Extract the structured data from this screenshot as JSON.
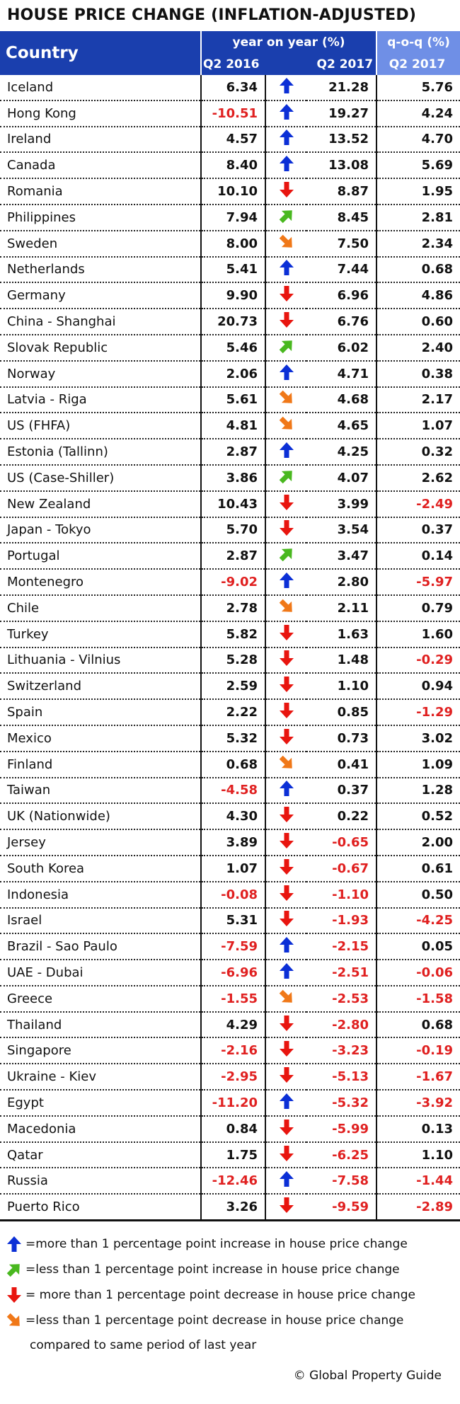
{
  "title": "HOUSE PRICE CHANGE (INFLATION-ADJUSTED)",
  "header": {
    "country": "Country",
    "yoy_label": "year on year (%)",
    "qoq_label": "q-o-q (%)",
    "col_2016": "Q2 2016",
    "col_2017": "Q2 2017",
    "col_qoq": "Q2 2017"
  },
  "colors": {
    "header_bg": "#1a3fae",
    "qoq_header_bg": "#6f8fe6",
    "negative": "#e02020",
    "up_strong": "#0b2fd6",
    "up_weak": "#49b81f",
    "down_strong": "#e8150f",
    "down_weak": "#f07818"
  },
  "chart_data": {
    "type": "table",
    "title": "HOUSE PRICE CHANGE (INFLATION-ADJUSTED)",
    "columns": [
      "Country",
      "Q2 2016",
      "",
      "Q2 2017",
      "Q2 2017"
    ],
    "rows": [
      {
        "country": "Iceland",
        "y2016": "6.34",
        "arrow": "up",
        "y2017": "21.28",
        "qoq": "5.76"
      },
      {
        "country": "Hong Kong",
        "y2016": "-10.51",
        "arrow": "up",
        "y2017": "19.27",
        "qoq": "4.24"
      },
      {
        "country": "Ireland",
        "y2016": "4.57",
        "arrow": "up",
        "y2017": "13.52",
        "qoq": "4.70"
      },
      {
        "country": "Canada",
        "y2016": "8.40",
        "arrow": "up",
        "y2017": "13.08",
        "qoq": "5.69"
      },
      {
        "country": "Romania",
        "y2016": "10.10",
        "arrow": "down",
        "y2017": "8.87",
        "qoq": "1.95"
      },
      {
        "country": "Philippines",
        "y2016": "7.94",
        "arrow": "up-small",
        "y2017": "8.45",
        "qoq": "2.81"
      },
      {
        "country": "Sweden",
        "y2016": "8.00",
        "arrow": "down-small",
        "y2017": "7.50",
        "qoq": "2.34"
      },
      {
        "country": "Netherlands",
        "y2016": "5.41",
        "arrow": "up",
        "y2017": "7.44",
        "qoq": "0.68"
      },
      {
        "country": "Germany",
        "y2016": "9.90",
        "arrow": "down",
        "y2017": "6.96",
        "qoq": "4.86"
      },
      {
        "country": "China - Shanghai",
        "y2016": "20.73",
        "arrow": "down",
        "y2017": "6.76",
        "qoq": "0.60"
      },
      {
        "country": "Slovak Republic",
        "y2016": "5.46",
        "arrow": "up-small",
        "y2017": "6.02",
        "qoq": "2.40"
      },
      {
        "country": "Norway",
        "y2016": "2.06",
        "arrow": "up",
        "y2017": "4.71",
        "qoq": "0.38"
      },
      {
        "country": "Latvia - Riga",
        "y2016": "5.61",
        "arrow": "down-small",
        "y2017": "4.68",
        "qoq": "2.17"
      },
      {
        "country": "US (FHFA)",
        "y2016": "4.81",
        "arrow": "down-small",
        "y2017": "4.65",
        "qoq": "1.07"
      },
      {
        "country": "Estonia (Tallinn)",
        "y2016": "2.87",
        "arrow": "up",
        "y2017": "4.25",
        "qoq": "0.32"
      },
      {
        "country": "US (Case-Shiller)",
        "y2016": "3.86",
        "arrow": "up-small",
        "y2017": "4.07",
        "qoq": "2.62"
      },
      {
        "country": "New Zealand",
        "y2016": "10.43",
        "arrow": "down",
        "y2017": "3.99",
        "qoq": "-2.49"
      },
      {
        "country": "Japan - Tokyo",
        "y2016": "5.70",
        "arrow": "down",
        "y2017": "3.54",
        "qoq": "0.37"
      },
      {
        "country": "Portugal",
        "y2016": "2.87",
        "arrow": "up-small",
        "y2017": "3.47",
        "qoq": "0.14"
      },
      {
        "country": "Montenegro",
        "y2016": "-9.02",
        "arrow": "up",
        "y2017": "2.80",
        "qoq": "-5.97"
      },
      {
        "country": "Chile",
        "y2016": "2.78",
        "arrow": "down-small",
        "y2017": "2.11",
        "qoq": "0.79"
      },
      {
        "country": "Turkey",
        "y2016": "5.82",
        "arrow": "down",
        "y2017": "1.63",
        "qoq": "1.60"
      },
      {
        "country": "Lithuania - Vilnius",
        "y2016": "5.28",
        "arrow": "down",
        "y2017": "1.48",
        "qoq": "-0.29"
      },
      {
        "country": "Switzerland",
        "y2016": "2.59",
        "arrow": "down",
        "y2017": "1.10",
        "qoq": "0.94"
      },
      {
        "country": "Spain",
        "y2016": "2.22",
        "arrow": "down",
        "y2017": "0.85",
        "qoq": "-1.29"
      },
      {
        "country": "Mexico",
        "y2016": "5.32",
        "arrow": "down",
        "y2017": "0.73",
        "qoq": "3.02"
      },
      {
        "country": "Finland",
        "y2016": "0.68",
        "arrow": "down-small",
        "y2017": "0.41",
        "qoq": "1.09"
      },
      {
        "country": "Taiwan",
        "y2016": "-4.58",
        "arrow": "up",
        "y2017": "0.37",
        "qoq": "1.28"
      },
      {
        "country": "UK (Nationwide)",
        "y2016": "4.30",
        "arrow": "down",
        "y2017": "0.22",
        "qoq": "0.52"
      },
      {
        "country": "Jersey",
        "y2016": "3.89",
        "arrow": "down",
        "y2017": "-0.65",
        "qoq": "2.00"
      },
      {
        "country": "South Korea",
        "y2016": "1.07",
        "arrow": "down",
        "y2017": "-0.67",
        "qoq": "0.61"
      },
      {
        "country": "Indonesia",
        "y2016": "-0.08",
        "arrow": "down",
        "y2017": "-1.10",
        "qoq": "0.50"
      },
      {
        "country": "Israel",
        "y2016": "5.31",
        "arrow": "down",
        "y2017": "-1.93",
        "qoq": "-4.25"
      },
      {
        "country": "Brazil - Sao Paulo",
        "y2016": "-7.59",
        "arrow": "up",
        "y2017": "-2.15",
        "qoq": "0.05"
      },
      {
        "country": "UAE - Dubai",
        "y2016": "-6.96",
        "arrow": "up",
        "y2017": "-2.51",
        "qoq": "-0.06"
      },
      {
        "country": "Greece",
        "y2016": "-1.55",
        "arrow": "down-small",
        "y2017": "-2.53",
        "qoq": "-1.58"
      },
      {
        "country": "Thailand",
        "y2016": "4.29",
        "arrow": "down",
        "y2017": "-2.80",
        "qoq": "0.68"
      },
      {
        "country": "Singapore",
        "y2016": "-2.16",
        "arrow": "down",
        "y2017": "-3.23",
        "qoq": "-0.19"
      },
      {
        "country": "Ukraine - Kiev",
        "y2016": "-2.95",
        "arrow": "down",
        "y2017": "-5.13",
        "qoq": "-1.67"
      },
      {
        "country": "Egypt",
        "y2016": "-11.20",
        "arrow": "up",
        "y2017": "-5.32",
        "qoq": "-3.92"
      },
      {
        "country": "Macedonia",
        "y2016": "0.84",
        "arrow": "down",
        "y2017": "-5.99",
        "qoq": "0.13"
      },
      {
        "country": "Qatar",
        "y2016": "1.75",
        "arrow": "down",
        "y2017": "-6.25",
        "qoq": "1.10"
      },
      {
        "country": "Russia",
        "y2016": "-12.46",
        "arrow": "up",
        "y2017": "-7.58",
        "qoq": "-1.44"
      },
      {
        "country": "Puerto Rico",
        "y2016": "3.26",
        "arrow": "down",
        "y2017": "-9.59",
        "qoq": "-2.89"
      }
    ]
  },
  "legend": {
    "items": [
      {
        "icon": "up",
        "text": "=more than 1 percentage point increase in house price change"
      },
      {
        "icon": "up-small",
        "text": "=less than 1 percentage point increase in house price change"
      },
      {
        "icon": "down",
        "text": "= more than 1 percentage point decrease in house price change"
      },
      {
        "icon": "down-small",
        "text": "=less than 1 percentage point decrease in house price change"
      }
    ],
    "continuation": "compared to same period of last year"
  },
  "credit": "Global Property Guide",
  "credit_symbol": "©"
}
